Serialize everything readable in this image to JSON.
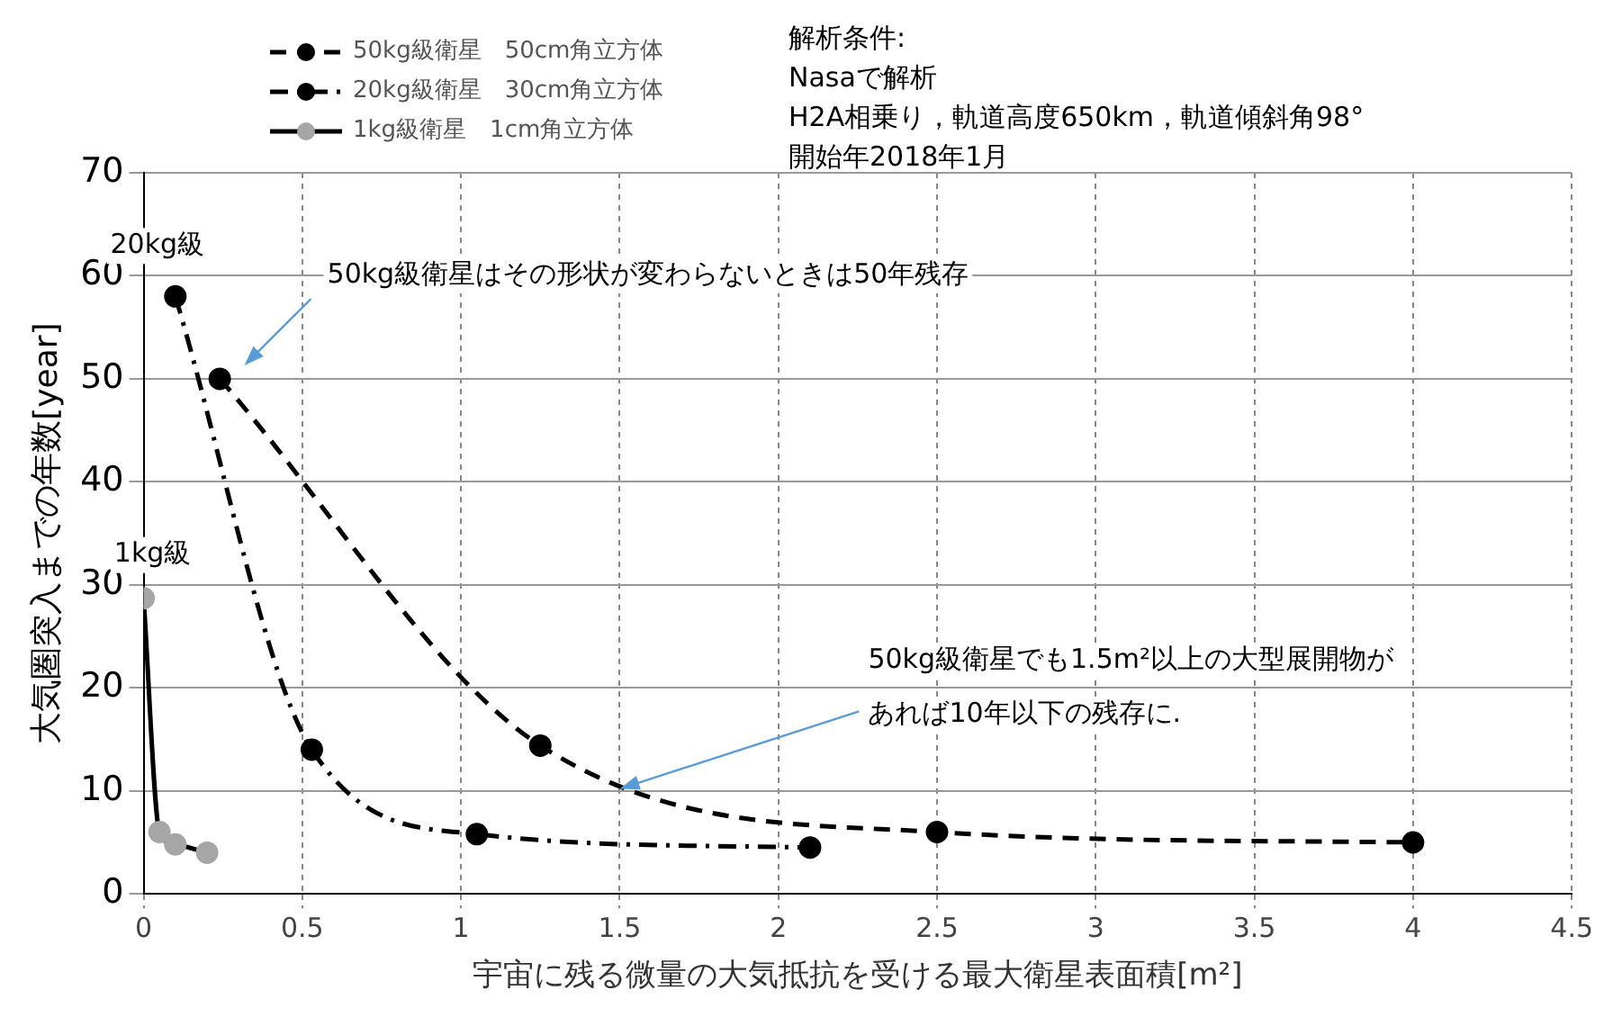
{
  "chart_data": {
    "type": "line",
    "xlabel": "宇宙に残る微量の大気抵抗を受ける最大衛星表面積[m²]",
    "ylabel": "大気圏突入までの年数[year]",
    "xlim": [
      0,
      4.5
    ],
    "xticks": [
      0,
      0.5,
      1,
      1.5,
      2,
      2.5,
      3,
      3.5,
      4,
      4.5
    ],
    "ylim": [
      0,
      70
    ],
    "yticks": [
      0,
      10,
      20,
      30,
      40,
      50,
      60,
      70
    ],
    "grid": true,
    "legend": "top left",
    "marker": "circle",
    "series": [
      {
        "name": "50kg級衛星　50cm角立方体",
        "color": "#000000",
        "line_style": "dashed",
        "x": [
          0.24,
          1.25,
          2.5,
          4
        ],
        "values": [
          50,
          14.4,
          6,
          5
        ]
      },
      {
        "name": "20kg級衛星　30cm角立方体",
        "color": "#000000",
        "line_style": "dotted",
        "x": [
          0.1,
          0.53,
          1.05,
          2.1
        ],
        "values": [
          58,
          14,
          5.8,
          4.5
        ]
      },
      {
        "name": "1kg級衛星　1cm角立方体",
        "color": "#a6a6a6",
        "line_style": "solid",
        "x": [
          0,
          0.05,
          0.1,
          0.2
        ],
        "values": [
          28.7,
          6,
          4.8,
          4
        ]
      }
    ],
    "annotations": [
      {
        "text": "20kg級",
        "x": 0.1,
        "y": 58
      },
      {
        "text": "1kg級",
        "x": 0,
        "y": 28.7
      },
      "50kg級衛星はその形状が変わらないときは50年残存",
      {
        "text": "50kg級衛星でも1.5m²以上の大型展開物があれば10年以下の残存に.",
        "x": 1.5,
        "y": 10.2
      },
      "解析条件:",
      "Nasaで解析",
      "H2A相乗り，軌道高度650km，軌道傾斜角98°",
      "開始年2018年1月"
    ]
  }
}
